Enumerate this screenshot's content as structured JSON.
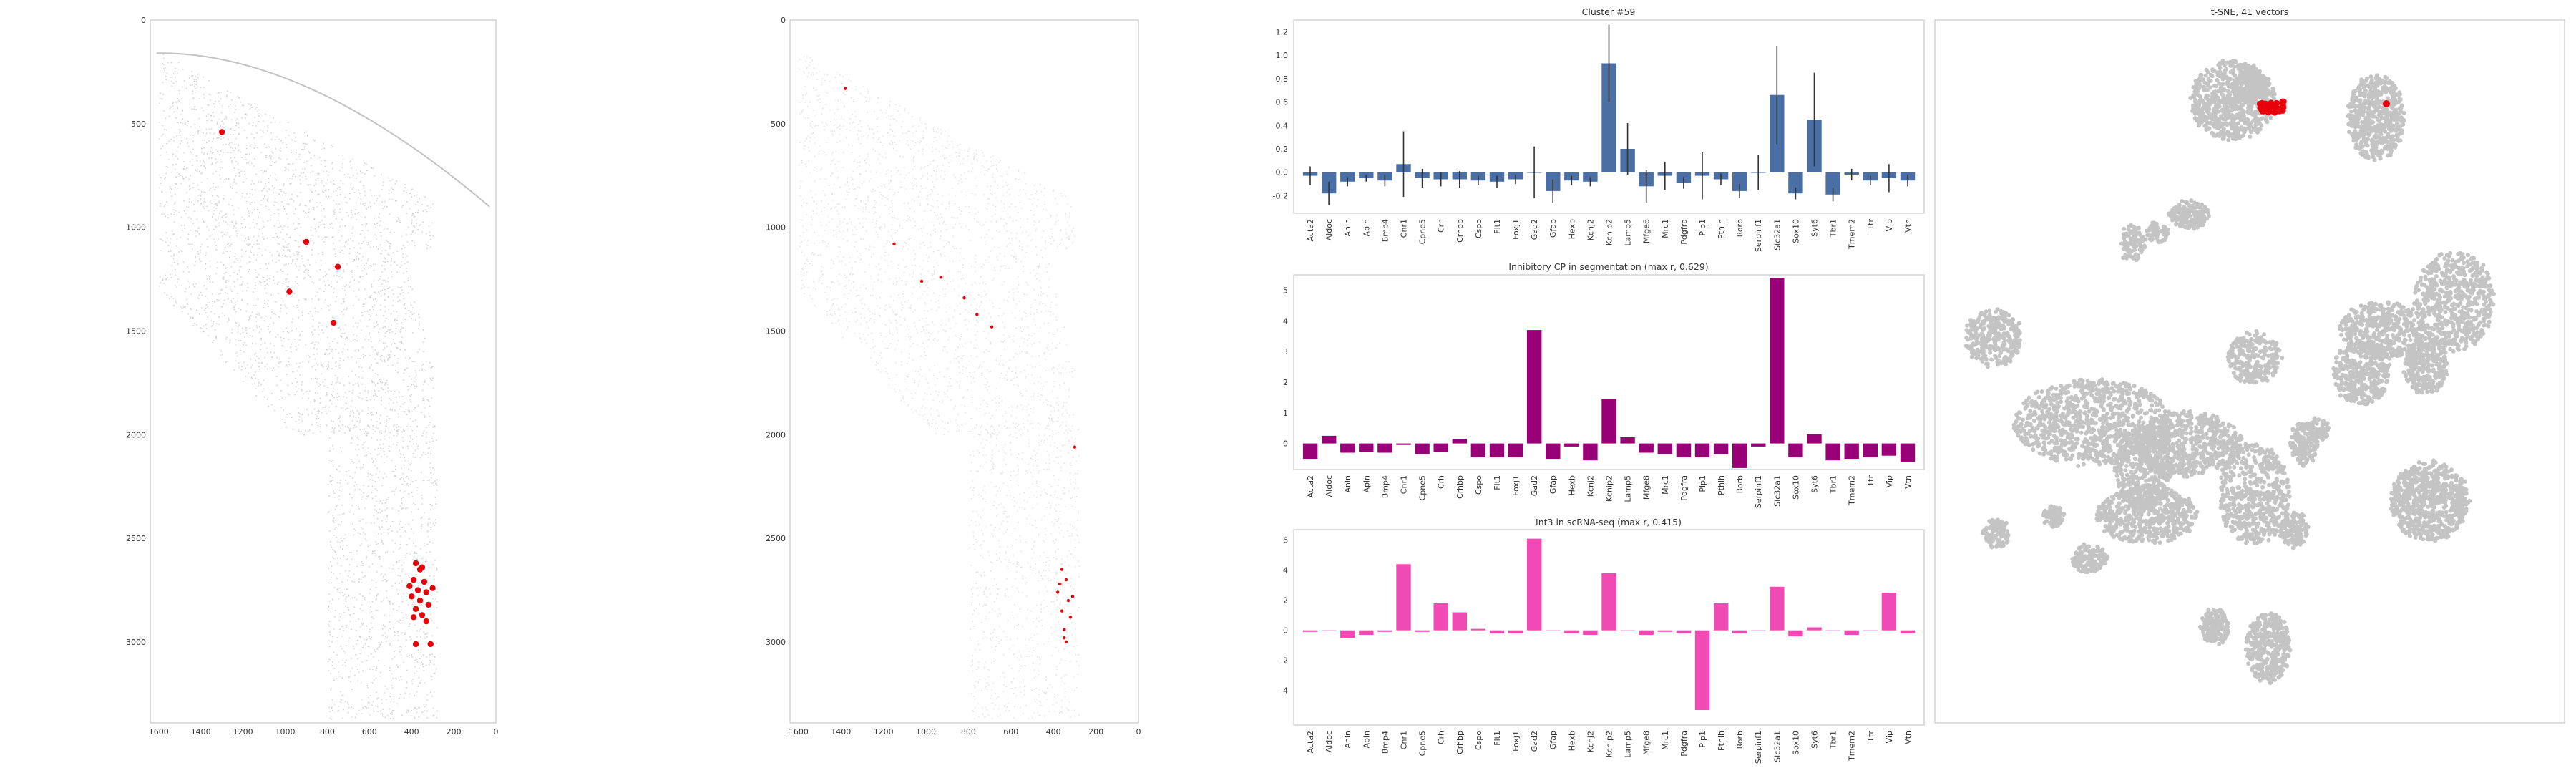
{
  "colors": {
    "spot_red": "#e8000b",
    "grey_dots": "#dcdcdc",
    "light_dots": "#e3e3e3",
    "bar_blue": "#4a6fa5",
    "bar_purple": "#990078",
    "bar_pink": "#f04bb4",
    "tsne_grey": "#c4c4c4"
  },
  "genes": [
    "Acta2",
    "Aldoc",
    "Anln",
    "Apln",
    "Bmp4",
    "Cnr1",
    "Cpne5",
    "Crh",
    "Crhbp",
    "Cspo",
    "Flt1",
    "Foxj1",
    "Gad2",
    "Gfap",
    "Hexb",
    "Kcnj2",
    "Kcnip2",
    "Lamp5",
    "Mfge8",
    "Mrc1",
    "Pdgfra",
    "Plp1",
    "Pthlh",
    "Rorb",
    "Serpinf1",
    "Slc32a1",
    "Sox10",
    "Syt6",
    "Tbr1",
    "Tmem2",
    "Ttr",
    "Vip",
    "Vtn"
  ],
  "chart_data": [
    {
      "id": "spatial_segmentation",
      "type": "scatter",
      "title": "",
      "x_ticks": [
        "1600",
        "1400",
        "1200",
        "1000",
        "800",
        "600",
        "400",
        "200",
        "0"
      ],
      "y_ticks": [
        "0",
        "500",
        "1000",
        "1500",
        "2000",
        "2500",
        "3000"
      ],
      "xlim": [
        1640,
        0
      ],
      "ylim": [
        3390,
        0
      ],
      "highlight_points": [
        [
          1300,
          540
        ],
        [
          900,
          1070
        ],
        [
          750,
          1190
        ],
        [
          980,
          1310
        ],
        [
          770,
          1460
        ],
        [
          380,
          2620
        ],
        [
          350,
          2640
        ],
        [
          390,
          2700
        ],
        [
          340,
          2710
        ],
        [
          370,
          2750
        ],
        [
          330,
          2760
        ],
        [
          400,
          2780
        ],
        [
          360,
          2800
        ],
        [
          320,
          2820
        ],
        [
          380,
          2840
        ],
        [
          350,
          2870
        ],
        [
          330,
          2900
        ],
        [
          380,
          3010
        ],
        [
          310,
          3010
        ],
        [
          360,
          2650
        ],
        [
          410,
          2730
        ],
        [
          300,
          2740
        ],
        [
          390,
          2880
        ]
      ]
    },
    {
      "id": "spatial_scrna",
      "type": "scatter",
      "title": "",
      "x_ticks": [
        "1600",
        "1400",
        "1200",
        "1000",
        "800",
        "600",
        "400",
        "200",
        "0"
      ],
      "y_ticks": [
        "0",
        "500",
        "1000",
        "1500",
        "2000",
        "2500",
        "3000"
      ],
      "xlim": [
        1640,
        0
      ],
      "ylim": [
        3390,
        0
      ],
      "highlight_points": [
        [
          1380,
          330
        ],
        [
          1150,
          1080
        ],
        [
          930,
          1240
        ],
        [
          820,
          1340
        ],
        [
          760,
          1420
        ],
        [
          360,
          2650
        ],
        [
          340,
          2700
        ],
        [
          380,
          2760
        ],
        [
          330,
          2800
        ],
        [
          360,
          2850
        ],
        [
          320,
          2880
        ],
        [
          350,
          2940
        ],
        [
          340,
          3000
        ],
        [
          300,
          2060
        ],
        [
          1020,
          1260
        ],
        [
          690,
          1480
        ],
        [
          370,
          2720
        ],
        [
          310,
          2780
        ],
        [
          350,
          2980
        ]
      ]
    },
    {
      "id": "cluster_profile",
      "type": "bar",
      "title": "Cluster #59",
      "y_ticks": [
        "-0.2",
        "0.0",
        "0.2",
        "0.4",
        "0.6",
        "0.8",
        "1.0",
        "1.2"
      ],
      "ylim": [
        -0.35,
        1.3
      ],
      "values": [
        -0.03,
        -0.18,
        -0.08,
        -0.05,
        -0.07,
        0.07,
        -0.05,
        -0.06,
        -0.06,
        -0.07,
        -0.08,
        -0.06,
        0.0,
        -0.16,
        -0.07,
        -0.08,
        0.93,
        0.2,
        -0.12,
        -0.03,
        -0.09,
        -0.03,
        -0.06,
        -0.16,
        0.0,
        0.66,
        -0.18,
        0.45,
        -0.19,
        -0.02,
        -0.07,
        -0.05,
        -0.07
      ],
      "errors": [
        0.08,
        0.1,
        0.04,
        0.03,
        0.05,
        0.28,
        0.08,
        0.06,
        0.07,
        0.04,
        0.05,
        0.04,
        0.22,
        0.1,
        0.04,
        0.04,
        0.33,
        0.22,
        0.14,
        0.12,
        0.05,
        0.2,
        0.05,
        0.06,
        0.15,
        0.42,
        0.05,
        0.4,
        0.06,
        0.05,
        0.04,
        0.12,
        0.05
      ]
    },
    {
      "id": "inhibitory_segmentation",
      "type": "bar",
      "title": "Inhibitory CP in segmentation (max r, 0.629)",
      "y_ticks": [
        "0",
        "1",
        "2",
        "3",
        "4",
        "5"
      ],
      "ylim": [
        -0.85,
        5.5
      ],
      "values": [
        -0.5,
        0.25,
        -0.3,
        -0.28,
        -0.3,
        -0.05,
        -0.35,
        -0.28,
        0.15,
        -0.45,
        -0.45,
        -0.45,
        3.7,
        -0.5,
        -0.1,
        -0.55,
        1.45,
        0.2,
        -0.3,
        -0.35,
        -0.45,
        -0.45,
        -0.35,
        -0.8,
        -0.1,
        5.4,
        -0.45,
        0.3,
        -0.55,
        -0.5,
        -0.45,
        -0.4,
        -0.6
      ]
    },
    {
      "id": "int3_scrnaseq",
      "type": "bar",
      "title": "Int3 in scRNA-seq (max r, 0.415)",
      "y_ticks": [
        "-4",
        "-2",
        "0",
        "2",
        "4",
        "6"
      ],
      "ylim": [
        -6.3,
        6.7
      ],
      "values": [
        -0.1,
        0.0,
        -0.5,
        -0.3,
        -0.1,
        4.4,
        -0.1,
        1.8,
        1.2,
        0.1,
        -0.2,
        -0.2,
        6.1,
        0.0,
        -0.2,
        -0.3,
        3.8,
        0.0,
        -0.3,
        -0.1,
        -0.2,
        -5.3,
        1.8,
        -0.2,
        0.0,
        2.9,
        -0.4,
        0.2,
        -0.05,
        -0.3,
        0.0,
        2.5,
        -0.2
      ]
    },
    {
      "id": "tsne",
      "type": "scatter",
      "title": "t-SNE, 41 vectors"
    }
  ]
}
